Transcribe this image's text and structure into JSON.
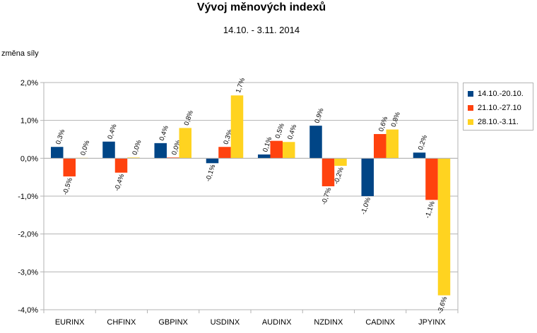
{
  "chart_data": {
    "type": "bar",
    "title": "Vývoj měnových indexů",
    "subtitle": "14.10. - 3.11. 2014",
    "ylabel": "změna síly",
    "xlabel": "",
    "ylim": [
      -4.0,
      2.0
    ],
    "yticks": [
      "-4,0%",
      "-3,0%",
      "-2,0%",
      "-1,0%",
      "0,0%",
      "1,0%",
      "2,0%"
    ],
    "ytick_values": [
      -4,
      -3,
      -2,
      -1,
      0,
      1,
      2
    ],
    "categories": [
      "EURINX",
      "CHFINX",
      "GBPINX",
      "USDINX",
      "AUDINX",
      "NZDINX",
      "CADINX",
      "JPYINX"
    ],
    "series": [
      {
        "name": "14.10.-20.10.",
        "color": "#004586",
        "values": [
          0.3,
          0.44,
          0.4,
          -0.13,
          0.1,
          0.86,
          -1.0,
          0.15
        ],
        "labels": [
          "0,3%",
          "0,4%",
          "0,4%",
          "-0,1%",
          "0,1%",
          "0,9%",
          "-1,0%",
          "0,2%"
        ]
      },
      {
        "name": "21.10.-27.10",
        "color": "#ff420e",
        "values": [
          -0.48,
          -0.38,
          0.02,
          0.3,
          0.46,
          -0.74,
          0.64,
          -1.1
        ],
        "labels": [
          "-0,5%",
          "-0,4%",
          "0,0%",
          "0,3%",
          "0,5%",
          "-0,7%",
          "0,6%",
          "-1,1%"
        ]
      },
      {
        "name": "28.10.-3.11.",
        "color": "#ffd320",
        "values": [
          0.01,
          0.02,
          0.8,
          1.66,
          0.43,
          -0.2,
          0.76,
          -3.62
        ],
        "labels": [
          "0,0%",
          "0,0%",
          "0,8%",
          "1,7%",
          "0,4%",
          "-0,2%",
          "0,8%",
          "-3,6%"
        ]
      }
    ],
    "grid": true,
    "legend_position": "right"
  }
}
